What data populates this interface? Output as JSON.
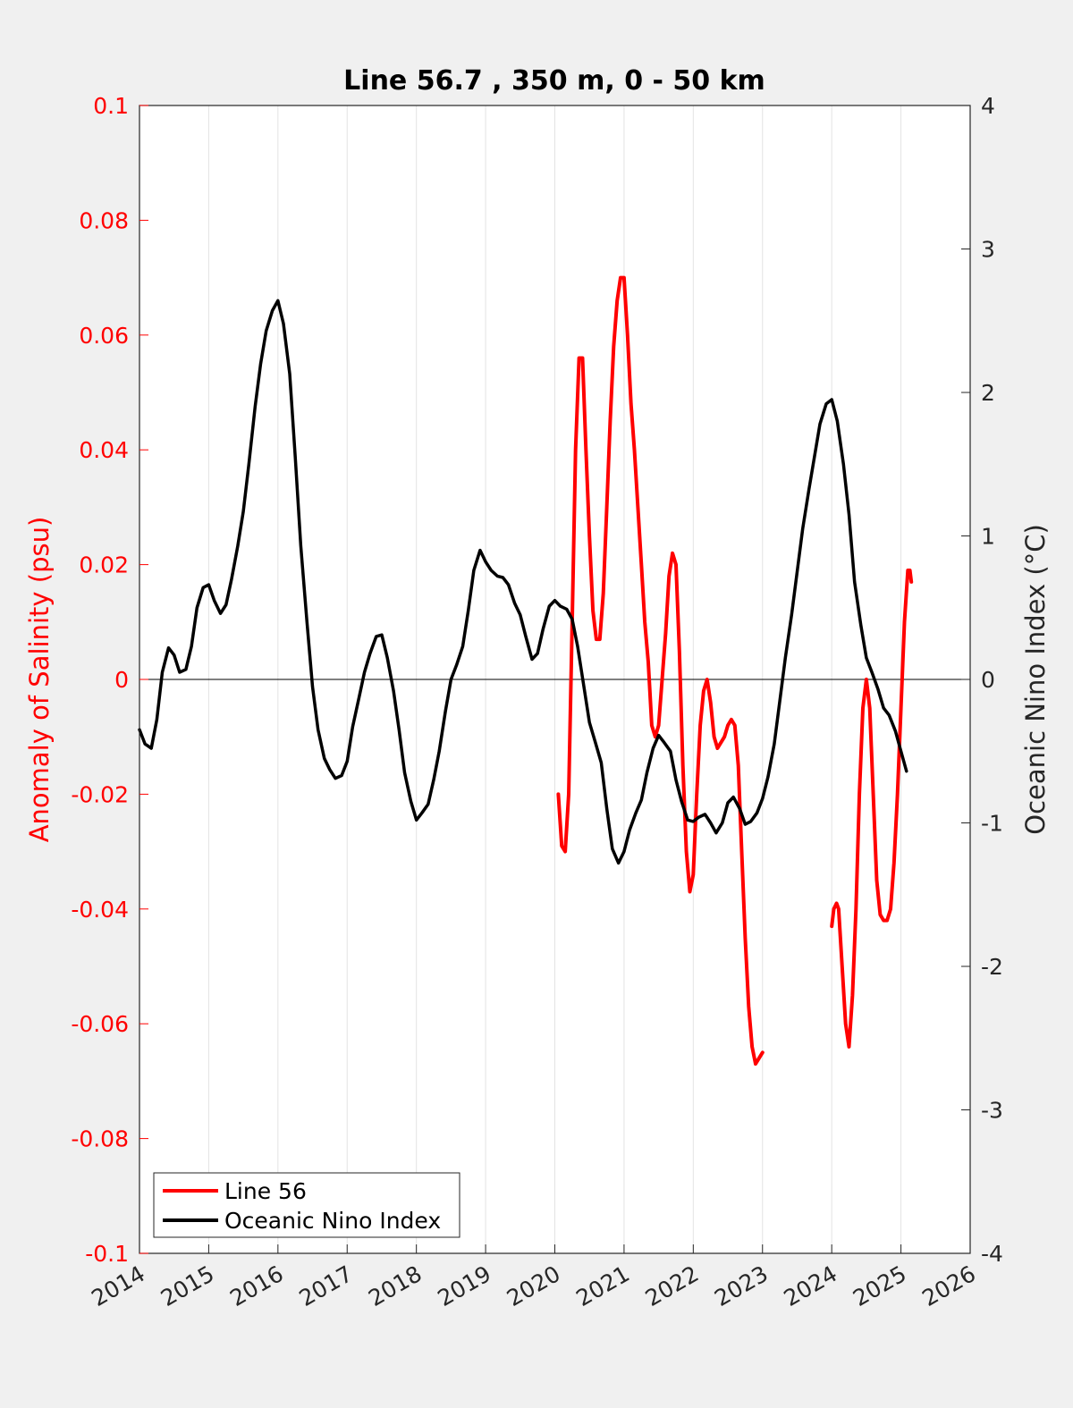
{
  "chart_data": {
    "type": "line",
    "title": "Line 56.7 , 350 m, 0 - 50 km",
    "ylabel_left": "Anomaly of Salinity (psu)",
    "ylabel_right": "Oceanic Nino Index (°C)",
    "xlim": [
      2014,
      2026
    ],
    "ylim_left": [
      -0.1,
      0.1
    ],
    "ylim_right": [
      -4,
      4
    ],
    "x_ticks": [
      "2014",
      "2015",
      "2016",
      "2017",
      "2018",
      "2019",
      "2020",
      "2021",
      "2022",
      "2023",
      "2024",
      "2025",
      "2026"
    ],
    "y_ticks_left": [
      "0.1",
      "0.08",
      "0.06",
      "0.04",
      "0.02",
      "0",
      "-0.02",
      "-0.04",
      "-0.06",
      "-0.08",
      "-0.1"
    ],
    "y_ticks_right": [
      "4",
      "3",
      "2",
      "1",
      "0",
      "-1",
      "-2",
      "-3",
      "-4"
    ],
    "grid": "vertical",
    "zero_line": true,
    "legend_position": "bottom-left",
    "colors": {
      "left_axis": "#ff0000",
      "line56": "#ff0000",
      "oni": "#000000",
      "background": "#f0f0f0",
      "plot_bg": "#ffffff",
      "grid": "#e3e3e3"
    },
    "series": [
      {
        "name": "Line 56",
        "axis": "left",
        "segments": [
          [
            [
              2020.05,
              -0.02
            ],
            [
              2020.1,
              -0.029
            ],
            [
              2020.15,
              -0.03
            ],
            [
              2020.2,
              -0.02
            ],
            [
              2020.25,
              0.01
            ],
            [
              2020.3,
              0.04
            ],
            [
              2020.35,
              0.056
            ],
            [
              2020.4,
              0.056
            ],
            [
              2020.45,
              0.04
            ],
            [
              2020.5,
              0.025
            ],
            [
              2020.55,
              0.012
            ],
            [
              2020.6,
              0.007
            ],
            [
              2020.65,
              0.007
            ],
            [
              2020.7,
              0.015
            ],
            [
              2020.75,
              0.03
            ],
            [
              2020.8,
              0.045
            ],
            [
              2020.85,
              0.058
            ],
            [
              2020.9,
              0.066
            ],
            [
              2020.95,
              0.07
            ],
            [
              2021.0,
              0.07
            ],
            [
              2021.05,
              0.06
            ],
            [
              2021.1,
              0.048
            ],
            [
              2021.15,
              0.04
            ],
            [
              2021.2,
              0.03
            ],
            [
              2021.25,
              0.02
            ],
            [
              2021.3,
              0.01
            ],
            [
              2021.35,
              0.003
            ],
            [
              2021.4,
              -0.008
            ],
            [
              2021.45,
              -0.01
            ],
            [
              2021.5,
              -0.008
            ],
            [
              2021.55,
              0.0
            ],
            [
              2021.6,
              0.008
            ],
            [
              2021.65,
              0.018
            ],
            [
              2021.7,
              0.022
            ],
            [
              2021.75,
              0.02
            ],
            [
              2021.8,
              0.005
            ],
            [
              2021.85,
              -0.015
            ],
            [
              2021.9,
              -0.03
            ],
            [
              2021.95,
              -0.037
            ],
            [
              2022.0,
              -0.034
            ],
            [
              2022.05,
              -0.02
            ],
            [
              2022.1,
              -0.008
            ],
            [
              2022.15,
              -0.002
            ],
            [
              2022.2,
              0.0
            ],
            [
              2022.25,
              -0.004
            ],
            [
              2022.3,
              -0.01
            ],
            [
              2022.35,
              -0.012
            ],
            [
              2022.4,
              -0.011
            ],
            [
              2022.45,
              -0.01
            ],
            [
              2022.5,
              -0.008
            ],
            [
              2022.55,
              -0.007
            ],
            [
              2022.6,
              -0.008
            ],
            [
              2022.65,
              -0.015
            ],
            [
              2022.7,
              -0.03
            ],
            [
              2022.75,
              -0.045
            ],
            [
              2022.8,
              -0.057
            ],
            [
              2022.85,
              -0.064
            ],
            [
              2022.9,
              -0.067
            ],
            [
              2022.95,
              -0.066
            ],
            [
              2023.0,
              -0.065
            ]
          ],
          [
            [
              2024.0,
              -0.043
            ],
            [
              2024.03,
              -0.04
            ],
            [
              2024.07,
              -0.039
            ],
            [
              2024.1,
              -0.04
            ],
            [
              2024.15,
              -0.05
            ],
            [
              2024.2,
              -0.06
            ],
            [
              2024.25,
              -0.064
            ],
            [
              2024.3,
              -0.055
            ],
            [
              2024.35,
              -0.04
            ],
            [
              2024.4,
              -0.02
            ],
            [
              2024.45,
              -0.005
            ],
            [
              2024.5,
              0.0
            ],
            [
              2024.55,
              -0.005
            ],
            [
              2024.6,
              -0.02
            ],
            [
              2024.65,
              -0.035
            ],
            [
              2024.7,
              -0.041
            ],
            [
              2024.75,
              -0.042
            ],
            [
              2024.8,
              -0.042
            ],
            [
              2024.85,
              -0.04
            ],
            [
              2024.9,
              -0.032
            ],
            [
              2024.95,
              -0.02
            ],
            [
              2025.0,
              -0.005
            ],
            [
              2025.05,
              0.01
            ],
            [
              2025.1,
              0.019
            ],
            [
              2025.13,
              0.019
            ],
            [
              2025.15,
              0.017
            ]
          ]
        ]
      },
      {
        "name": "Oceanic Nino Index",
        "axis": "right",
        "points": [
          [
            2014.0,
            -0.35
          ],
          [
            2014.08,
            -0.45
          ],
          [
            2014.17,
            -0.48
          ],
          [
            2014.25,
            -0.28
          ],
          [
            2014.33,
            0.05
          ],
          [
            2014.42,
            0.22
          ],
          [
            2014.5,
            0.17
          ],
          [
            2014.58,
            0.05
          ],
          [
            2014.67,
            0.07
          ],
          [
            2014.75,
            0.23
          ],
          [
            2014.83,
            0.5
          ],
          [
            2014.92,
            0.64
          ],
          [
            2015.0,
            0.66
          ],
          [
            2015.08,
            0.55
          ],
          [
            2015.17,
            0.46
          ],
          [
            2015.25,
            0.52
          ],
          [
            2015.33,
            0.7
          ],
          [
            2015.42,
            0.93
          ],
          [
            2015.5,
            1.17
          ],
          [
            2015.58,
            1.5
          ],
          [
            2015.67,
            1.9
          ],
          [
            2015.75,
            2.2
          ],
          [
            2015.83,
            2.43
          ],
          [
            2015.92,
            2.57
          ],
          [
            2016.0,
            2.64
          ],
          [
            2016.08,
            2.48
          ],
          [
            2016.17,
            2.13
          ],
          [
            2016.25,
            1.55
          ],
          [
            2016.33,
            0.93
          ],
          [
            2016.42,
            0.4
          ],
          [
            2016.5,
            -0.05
          ],
          [
            2016.58,
            -0.35
          ],
          [
            2016.67,
            -0.55
          ],
          [
            2016.75,
            -0.63
          ],
          [
            2016.83,
            -0.69
          ],
          [
            2016.92,
            -0.67
          ],
          [
            2017.0,
            -0.57
          ],
          [
            2017.08,
            -0.33
          ],
          [
            2017.17,
            -0.13
          ],
          [
            2017.25,
            0.05
          ],
          [
            2017.33,
            0.18
          ],
          [
            2017.42,
            0.3
          ],
          [
            2017.5,
            0.31
          ],
          [
            2017.58,
            0.15
          ],
          [
            2017.67,
            -0.08
          ],
          [
            2017.75,
            -0.35
          ],
          [
            2017.83,
            -0.65
          ],
          [
            2017.92,
            -0.85
          ],
          [
            2018.0,
            -0.98
          ],
          [
            2018.08,
            -0.93
          ],
          [
            2018.17,
            -0.87
          ],
          [
            2018.25,
            -0.7
          ],
          [
            2018.33,
            -0.5
          ],
          [
            2018.42,
            -0.22
          ],
          [
            2018.5,
            0.0
          ],
          [
            2018.58,
            0.1
          ],
          [
            2018.67,
            0.23
          ],
          [
            2018.75,
            0.48
          ],
          [
            2018.83,
            0.76
          ],
          [
            2018.92,
            0.9
          ],
          [
            2019.0,
            0.82
          ],
          [
            2019.08,
            0.76
          ],
          [
            2019.17,
            0.72
          ],
          [
            2019.25,
            0.71
          ],
          [
            2019.33,
            0.66
          ],
          [
            2019.42,
            0.53
          ],
          [
            2019.5,
            0.45
          ],
          [
            2019.58,
            0.3
          ],
          [
            2019.67,
            0.14
          ],
          [
            2019.75,
            0.18
          ],
          [
            2019.83,
            0.35
          ],
          [
            2019.92,
            0.51
          ],
          [
            2020.0,
            0.55
          ],
          [
            2020.08,
            0.51
          ],
          [
            2020.17,
            0.49
          ],
          [
            2020.25,
            0.42
          ],
          [
            2020.33,
            0.23
          ],
          [
            2020.42,
            -0.05
          ],
          [
            2020.5,
            -0.3
          ],
          [
            2020.58,
            -0.43
          ],
          [
            2020.67,
            -0.58
          ],
          [
            2020.75,
            -0.9
          ],
          [
            2020.83,
            -1.18
          ],
          [
            2020.92,
            -1.28
          ],
          [
            2021.0,
            -1.2
          ],
          [
            2021.08,
            -1.05
          ],
          [
            2021.17,
            -0.93
          ],
          [
            2021.25,
            -0.84
          ],
          [
            2021.33,
            -0.65
          ],
          [
            2021.42,
            -0.48
          ],
          [
            2021.5,
            -0.39
          ],
          [
            2021.58,
            -0.44
          ],
          [
            2021.67,
            -0.5
          ],
          [
            2021.75,
            -0.7
          ],
          [
            2021.83,
            -0.85
          ],
          [
            2021.92,
            -0.98
          ],
          [
            2022.0,
            -0.99
          ],
          [
            2022.08,
            -0.96
          ],
          [
            2022.17,
            -0.94
          ],
          [
            2022.25,
            -1.0
          ],
          [
            2022.33,
            -1.07
          ],
          [
            2022.42,
            -1.0
          ],
          [
            2022.5,
            -0.86
          ],
          [
            2022.58,
            -0.82
          ],
          [
            2022.67,
            -0.9
          ],
          [
            2022.75,
            -1.01
          ],
          [
            2022.83,
            -0.99
          ],
          [
            2022.92,
            -0.93
          ],
          [
            2023.0,
            -0.83
          ],
          [
            2023.08,
            -0.68
          ],
          [
            2023.17,
            -0.45
          ],
          [
            2023.25,
            -0.15
          ],
          [
            2023.33,
            0.15
          ],
          [
            2023.42,
            0.45
          ],
          [
            2023.5,
            0.75
          ],
          [
            2023.58,
            1.05
          ],
          [
            2023.67,
            1.32
          ],
          [
            2023.75,
            1.55
          ],
          [
            2023.83,
            1.78
          ],
          [
            2023.92,
            1.92
          ],
          [
            2024.0,
            1.95
          ],
          [
            2024.08,
            1.8
          ],
          [
            2024.17,
            1.5
          ],
          [
            2024.25,
            1.15
          ],
          [
            2024.33,
            0.68
          ],
          [
            2024.42,
            0.38
          ],
          [
            2024.5,
            0.15
          ],
          [
            2024.58,
            0.05
          ],
          [
            2024.67,
            -0.07
          ],
          [
            2024.75,
            -0.2
          ],
          [
            2024.83,
            -0.25
          ],
          [
            2024.92,
            -0.36
          ],
          [
            2025.0,
            -0.5
          ],
          [
            2025.08,
            -0.64
          ]
        ]
      }
    ]
  }
}
